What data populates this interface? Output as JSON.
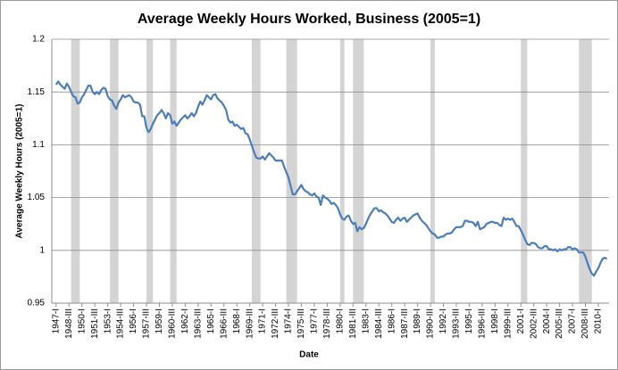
{
  "chart_data": {
    "type": "line",
    "title": "Average Weekly Hours Worked, Business (2005=1)",
    "x_label": "Date",
    "y_label": "Average Weekly Hours (2005=1)",
    "color": "#4a7ebb",
    "shade_color": "#d4d4d4",
    "grid": true,
    "shaded_ranges": [
      [
        1948.75,
        1949.75
      ],
      [
        1953.25,
        1954.25
      ],
      [
        1957.5,
        1958.25
      ],
      [
        1960.25,
        1961.0
      ],
      [
        1969.75,
        1970.75
      ],
      [
        1973.75,
        1975.0
      ],
      [
        1980.0,
        1980.5
      ],
      [
        1981.5,
        1982.75
      ],
      [
        1990.5,
        1991.0
      ],
      [
        2001.0,
        2001.75
      ],
      [
        2007.75,
        2009.25
      ]
    ],
    "xlim": [
      1946.5,
      2011.25
    ],
    "ylim": [
      0.95,
      1.2
    ],
    "yticks": [
      0.95,
      1,
      1.05,
      1.1,
      1.15,
      1.2
    ],
    "xticks": [
      {
        "value": 1947,
        "label": "1947-I"
      },
      {
        "value": 1948.5,
        "label": "1948-III"
      },
      {
        "value": 1950,
        "label": "1950-I"
      },
      {
        "value": 1951.5,
        "label": "1951-III"
      },
      {
        "value": 1953,
        "label": "1953-I"
      },
      {
        "value": 1954.5,
        "label": "1954-III"
      },
      {
        "value": 1956,
        "label": "1956-I"
      },
      {
        "value": 1957.5,
        "label": "1957-III"
      },
      {
        "value": 1959,
        "label": "1959-I"
      },
      {
        "value": 1960.5,
        "label": "1960-III"
      },
      {
        "value": 1962,
        "label": "1962-I"
      },
      {
        "value": 1963.5,
        "label": "1963-III"
      },
      {
        "value": 1965,
        "label": "1965-I"
      },
      {
        "value": 1966.5,
        "label": "1966-III"
      },
      {
        "value": 1968,
        "label": "1968-I"
      },
      {
        "value": 1969.5,
        "label": "1969-III"
      },
      {
        "value": 1971,
        "label": "1971-I"
      },
      {
        "value": 1972.5,
        "label": "1972-III"
      },
      {
        "value": 1974,
        "label": "1974-I"
      },
      {
        "value": 1975.5,
        "label": "1975-III"
      },
      {
        "value": 1977,
        "label": "1977-I"
      },
      {
        "value": 1978.5,
        "label": "1978-III"
      },
      {
        "value": 1980,
        "label": "1980-I"
      },
      {
        "value": 1981.5,
        "label": "1981-III"
      },
      {
        "value": 1983,
        "label": "1983-I"
      },
      {
        "value": 1984.5,
        "label": "1984-III"
      },
      {
        "value": 1986,
        "label": "1986-I"
      },
      {
        "value": 1987.5,
        "label": "1987-III"
      },
      {
        "value": 1989,
        "label": "1989-I"
      },
      {
        "value": 1990.5,
        "label": "1990-III"
      },
      {
        "value": 1992,
        "label": "1992-I"
      },
      {
        "value": 1993.5,
        "label": "1993-III"
      },
      {
        "value": 1995,
        "label": "1995-I"
      },
      {
        "value": 1996.5,
        "label": "1996-III"
      },
      {
        "value": 1998,
        "label": "1998-I"
      },
      {
        "value": 1999.5,
        "label": "1999-III"
      },
      {
        "value": 2001,
        "label": "2001-I"
      },
      {
        "value": 2002.5,
        "label": "2002-III"
      },
      {
        "value": 2004,
        "label": "2004-I"
      },
      {
        "value": 2005.5,
        "label": "2005-III"
      },
      {
        "value": 2007,
        "label": "2007-I"
      },
      {
        "value": 2008.5,
        "label": "2008-III"
      },
      {
        "value": 2010,
        "label": "2010-I"
      }
    ],
    "x": [
      1947,
      1947.25,
      1947.5,
      1947.75,
      1948,
      1948.25,
      1948.5,
      1948.75,
      1949,
      1949.25,
      1949.5,
      1949.75,
      1950,
      1950.25,
      1950.5,
      1950.75,
      1951,
      1951.25,
      1951.5,
      1951.75,
      1952,
      1952.25,
      1952.5,
      1952.75,
      1953,
      1953.25,
      1953.5,
      1953.75,
      1954,
      1954.25,
      1954.5,
      1954.75,
      1955,
      1955.25,
      1955.5,
      1955.75,
      1956,
      1956.25,
      1956.5,
      1956.75,
      1957,
      1957.25,
      1957.5,
      1957.75,
      1958,
      1958.25,
      1958.5,
      1958.75,
      1959,
      1959.25,
      1959.5,
      1959.75,
      1960,
      1960.25,
      1960.5,
      1960.75,
      1961,
      1961.25,
      1961.5,
      1961.75,
      1962,
      1962.25,
      1962.5,
      1962.75,
      1963,
      1963.25,
      1963.5,
      1963.75,
      1964,
      1964.25,
      1964.5,
      1964.75,
      1965,
      1965.25,
      1965.5,
      1965.75,
      1966,
      1966.25,
      1966.5,
      1966.75,
      1967,
      1967.25,
      1967.5,
      1967.75,
      1968,
      1968.25,
      1968.5,
      1968.75,
      1969,
      1969.25,
      1969.5,
      1969.75,
      1970,
      1970.25,
      1970.5,
      1970.75,
      1971,
      1971.25,
      1971.5,
      1971.75,
      1972,
      1972.25,
      1972.5,
      1972.75,
      1973,
      1973.25,
      1973.5,
      1973.75,
      1974,
      1974.25,
      1974.5,
      1974.75,
      1975,
      1975.25,
      1975.5,
      1975.75,
      1976,
      1976.25,
      1976.5,
      1976.75,
      1977,
      1977.25,
      1977.5,
      1977.75,
      1978,
      1978.25,
      1978.5,
      1978.75,
      1979,
      1979.25,
      1979.5,
      1979.75,
      1980,
      1980.25,
      1980.5,
      1980.75,
      1981,
      1981.25,
      1981.5,
      1981.75,
      1982,
      1982.25,
      1982.5,
      1982.75,
      1983,
      1983.25,
      1983.5,
      1983.75,
      1984,
      1984.25,
      1984.5,
      1984.75,
      1985,
      1985.25,
      1985.5,
      1985.75,
      1986,
      1986.25,
      1986.5,
      1986.75,
      1987,
      1987.25,
      1987.5,
      1987.75,
      1988,
      1988.25,
      1988.5,
      1988.75,
      1989,
      1989.25,
      1989.5,
      1989.75,
      1990,
      1990.25,
      1990.5,
      1990.75,
      1991,
      1991.25,
      1991.5,
      1991.75,
      1992,
      1992.25,
      1992.5,
      1992.75,
      1993,
      1993.25,
      1993.5,
      1993.75,
      1994,
      1994.25,
      1994.5,
      1994.75,
      1995,
      1995.25,
      1995.5,
      1995.75,
      1996,
      1996.25,
      1996.5,
      1996.75,
      1997,
      1997.25,
      1997.5,
      1997.75,
      1998,
      1998.25,
      1998.5,
      1998.75,
      1999,
      1999.25,
      1999.5,
      1999.75,
      2000,
      2000.25,
      2000.5,
      2000.75,
      2001,
      2001.25,
      2001.5,
      2001.75,
      2002,
      2002.25,
      2002.5,
      2002.75,
      2003,
      2003.25,
      2003.5,
      2003.75,
      2004,
      2004.25,
      2004.5,
      2004.75,
      2005,
      2005.25,
      2005.5,
      2005.75,
      2006,
      2006.25,
      2006.5,
      2006.75,
      2007,
      2007.25,
      2007.5,
      2007.75,
      2008,
      2008.25,
      2008.5,
      2008.75,
      2009,
      2009.25,
      2009.5,
      2009.75,
      2010,
      2010.25,
      2010.5,
      2010.75,
      2011
    ],
    "values": [
      1.157,
      1.16,
      1.157,
      1.155,
      1.153,
      1.158,
      1.155,
      1.15,
      1.146,
      1.145,
      1.139,
      1.14,
      1.145,
      1.148,
      1.152,
      1.156,
      1.156,
      1.15,
      1.148,
      1.15,
      1.148,
      1.152,
      1.154,
      1.153,
      1.146,
      1.143,
      1.142,
      1.137,
      1.134,
      1.14,
      1.143,
      1.147,
      1.145,
      1.146,
      1.147,
      1.145,
      1.141,
      1.14,
      1.14,
      1.138,
      1.127,
      1.127,
      1.116,
      1.112,
      1.115,
      1.12,
      1.124,
      1.128,
      1.13,
      1.133,
      1.13,
      1.125,
      1.13,
      1.128,
      1.12,
      1.122,
      1.118,
      1.121,
      1.124,
      1.126,
      1.128,
      1.125,
      1.127,
      1.13,
      1.127,
      1.13,
      1.136,
      1.141,
      1.138,
      1.142,
      1.147,
      1.145,
      1.143,
      1.147,
      1.148,
      1.144,
      1.142,
      1.14,
      1.137,
      1.133,
      1.124,
      1.121,
      1.122,
      1.118,
      1.119,
      1.117,
      1.115,
      1.116,
      1.111,
      1.11,
      1.105,
      1.099,
      1.093,
      1.088,
      1.087,
      1.087,
      1.089,
      1.086,
      1.089,
      1.092,
      1.09,
      1.088,
      1.085,
      1.085,
      1.085,
      1.085,
      1.079,
      1.074,
      1.069,
      1.061,
      1.053,
      1.053,
      1.056,
      1.059,
      1.062,
      1.058,
      1.056,
      1.055,
      1.053,
      1.052,
      1.054,
      1.051,
      1.05,
      1.043,
      1.052,
      1.05,
      1.049,
      1.047,
      1.044,
      1.045,
      1.043,
      1.04,
      1.034,
      1.03,
      1.029,
      1.032,
      1.033,
      1.028,
      1.025,
      1.026,
      1.018,
      1.022,
      1.02,
      1.021,
      1.025,
      1.03,
      1.034,
      1.037,
      1.04,
      1.04,
      1.037,
      1.038,
      1.036,
      1.035,
      1.033,
      1.03,
      1.027,
      1.026,
      1.029,
      1.031,
      1.028,
      1.03,
      1.031,
      1.027,
      1.029,
      1.031,
      1.033,
      1.034,
      1.035,
      1.031,
      1.028,
      1.026,
      1.024,
      1.021,
      1.018,
      1.016,
      1.015,
      1.012,
      1.012,
      1.013,
      1.013,
      1.015,
      1.016,
      1.016,
      1.017,
      1.02,
      1.022,
      1.022,
      1.022,
      1.023,
      1.028,
      1.028,
      1.027,
      1.027,
      1.026,
      1.023,
      1.027,
      1.02,
      1.021,
      1.022,
      1.025,
      1.026,
      1.027,
      1.027,
      1.026,
      1.026,
      1.024,
      1.023,
      1.031,
      1.029,
      1.03,
      1.029,
      1.03,
      1.027,
      1.023,
      1.023,
      1.019,
      1.015,
      1.01,
      1.006,
      1.005,
      1.007,
      1.007,
      1.006,
      1.003,
      1.002,
      1.002,
      1.004,
      1.004,
      1.001,
      1.001,
      1.0,
      1.001,
      0.999,
      1.001,
      1.0,
      1.001,
      1.001,
      1.003,
      1.003,
      1.001,
      1.002,
      1.001,
      0.998,
      0.998,
      0.998,
      0.994,
      0.988,
      0.982,
      0.978,
      0.976,
      0.98,
      0.983,
      0.988,
      0.992,
      0.993,
      0.992
    ]
  }
}
